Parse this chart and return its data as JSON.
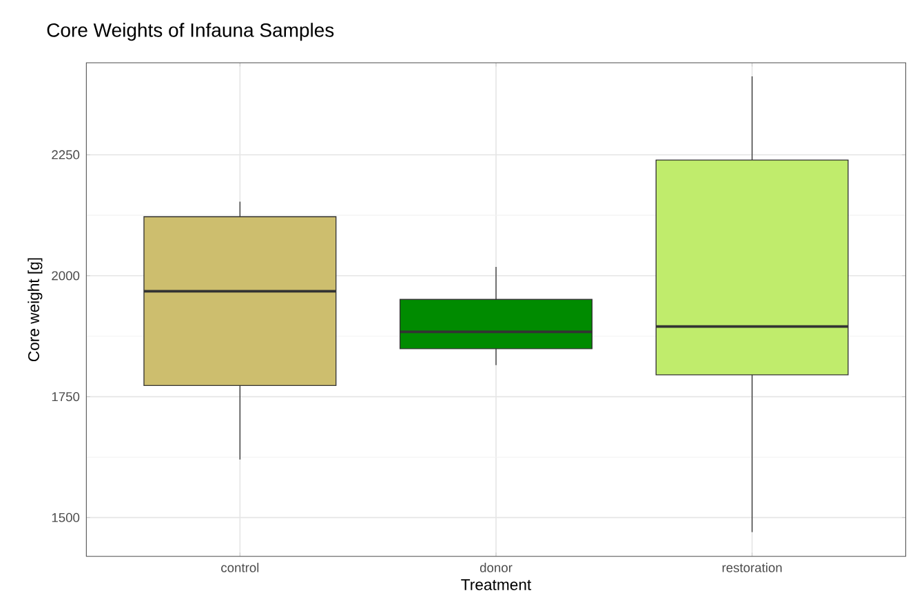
{
  "chart_data": {
    "type": "box",
    "title": "Core Weights of Infauna Samples",
    "xlabel": "Treatment",
    "ylabel": "Core weight [g]",
    "categories": [
      "control",
      "donor",
      "restoration"
    ],
    "colors": [
      "#cdbe6e",
      "#008b00",
      "#c0ec6c"
    ],
    "boxes": [
      {
        "low": 1620,
        "q1": 1773,
        "median": 1968,
        "q3": 2122,
        "high": 2153
      },
      {
        "low": 1815,
        "q1": 1849,
        "median": 1884,
        "q3": 1951,
        "high": 2018
      },
      {
        "low": 1470,
        "q1": 1795,
        "median": 1895,
        "q3": 2239,
        "high": 2412
      }
    ],
    "ylim": [
      1420,
      2440
    ],
    "yticks": [
      1500,
      1750,
      2000,
      2250
    ],
    "grid": true
  }
}
